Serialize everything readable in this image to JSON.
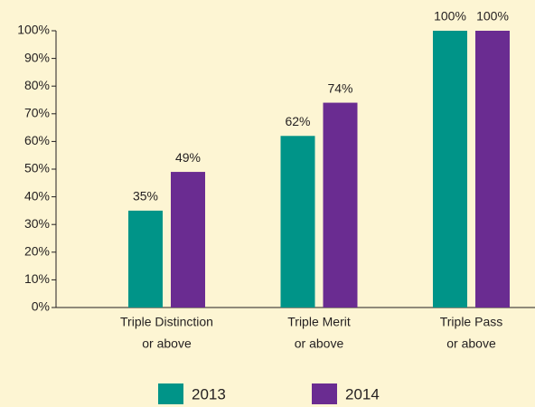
{
  "chart_data": {
    "type": "bar",
    "categories": [
      [
        "Triple Distinction",
        "or above"
      ],
      [
        "Triple Merit",
        "or above"
      ],
      [
        "Triple Pass",
        "or above"
      ]
    ],
    "series": [
      {
        "name": "2013",
        "color": "#009488",
        "values": [
          35,
          62,
          100
        ],
        "value_labels": [
          "35%",
          "62%",
          "100%"
        ]
      },
      {
        "name": "2014",
        "color": "#6a2c91",
        "values": [
          49,
          74,
          100
        ],
        "value_labels": [
          "49%",
          "74%",
          "100%"
        ]
      }
    ],
    "ylim": [
      0,
      100
    ],
    "yticks": [
      {
        "value": 0,
        "label": "0%"
      },
      {
        "value": 10,
        "label": "10%"
      },
      {
        "value": 20,
        "label": "20%"
      },
      {
        "value": 30,
        "label": "30%"
      },
      {
        "value": 40,
        "label": "40%"
      },
      {
        "value": 50,
        "label": "50%"
      },
      {
        "value": 60,
        "label": "60%"
      },
      {
        "value": 70,
        "label": "70%"
      },
      {
        "value": 80,
        "label": "80%"
      },
      {
        "value": 90,
        "label": "90%"
      },
      {
        "value": 100,
        "label": "100%"
      }
    ],
    "legend": "bottom"
  }
}
